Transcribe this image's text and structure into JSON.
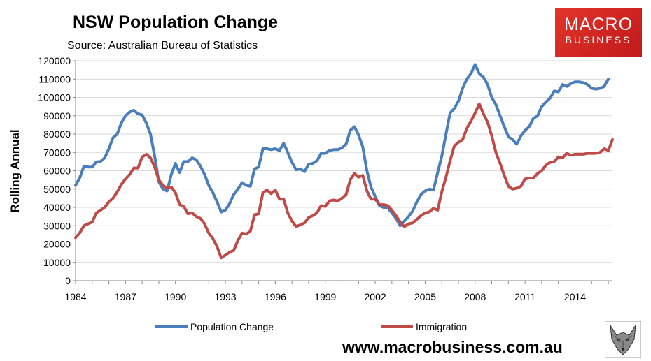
{
  "header": {
    "title": "NSW Population Change",
    "subtitle": "Source: Australian Bureau of Statistics"
  },
  "logo": {
    "line1": "MACRO",
    "line2": "BUSINESS",
    "color": "#d42a25",
    "icon": "wolf-logo-icon"
  },
  "footer": {
    "url": "www.macrobusiness.com.au"
  },
  "chart_data": {
    "type": "line",
    "ylabel": "Rolling Annual",
    "xlabel": "",
    "ylim": [
      0,
      120000
    ],
    "xlim": [
      1984,
      2016.25
    ],
    "yticks": [
      0,
      10000,
      20000,
      30000,
      40000,
      50000,
      60000,
      70000,
      80000,
      90000,
      100000,
      110000,
      120000
    ],
    "xticks": [
      "1984",
      "1987",
      "1990",
      "1993",
      "1996",
      "1999",
      "2002",
      "2005",
      "2008",
      "2011",
      "2014"
    ],
    "grid": true,
    "legend": "bottom",
    "series": [
      {
        "name": "Population Change",
        "color": "#4a7ebb",
        "points": [
          [
            1984.0,
            52000
          ],
          [
            1984.25,
            56000
          ],
          [
            1984.5,
            62500
          ],
          [
            1984.75,
            62000
          ],
          [
            1985.0,
            62000
          ],
          [
            1985.25,
            64800
          ],
          [
            1985.5,
            65000
          ],
          [
            1985.75,
            67000
          ],
          [
            1986.0,
            72000
          ],
          [
            1986.25,
            78000
          ],
          [
            1986.5,
            80000
          ],
          [
            1986.75,
            86000
          ],
          [
            1987.0,
            90000
          ],
          [
            1987.25,
            92000
          ],
          [
            1987.5,
            93000
          ],
          [
            1987.75,
            91000
          ],
          [
            1988.0,
            90500
          ],
          [
            1988.25,
            86000
          ],
          [
            1988.5,
            80000
          ],
          [
            1988.75,
            68000
          ],
          [
            1989.0,
            54000
          ],
          [
            1989.25,
            50000
          ],
          [
            1989.5,
            49000
          ],
          [
            1989.75,
            58000
          ],
          [
            1990.0,
            64000
          ],
          [
            1990.25,
            59000
          ],
          [
            1990.5,
            65000
          ],
          [
            1990.75,
            65000
          ],
          [
            1991.0,
            67000
          ],
          [
            1991.25,
            66000
          ],
          [
            1991.5,
            62500
          ],
          [
            1991.75,
            58000
          ],
          [
            1992.0,
            52000
          ],
          [
            1992.25,
            48000
          ],
          [
            1992.5,
            43000
          ],
          [
            1992.75,
            37500
          ],
          [
            1993.0,
            38500
          ],
          [
            1993.25,
            42000
          ],
          [
            1993.5,
            47000
          ],
          [
            1993.75,
            50000
          ],
          [
            1994.0,
            53500
          ],
          [
            1994.25,
            52000
          ],
          [
            1994.5,
            51500
          ],
          [
            1994.75,
            61000
          ],
          [
            1995.0,
            62000
          ],
          [
            1995.25,
            72000
          ],
          [
            1995.5,
            72000
          ],
          [
            1995.75,
            71500
          ],
          [
            1996.0,
            72000
          ],
          [
            1996.25,
            71000
          ],
          [
            1996.5,
            75000
          ],
          [
            1996.75,
            70000
          ],
          [
            1997.0,
            64500
          ],
          [
            1997.25,
            60500
          ],
          [
            1997.5,
            61000
          ],
          [
            1997.75,
            59500
          ],
          [
            1998.0,
            63500
          ],
          [
            1998.25,
            64000
          ],
          [
            1998.5,
            65500
          ],
          [
            1998.75,
            69500
          ],
          [
            1999.0,
            69500
          ],
          [
            1999.25,
            71000
          ],
          [
            1999.5,
            71500
          ],
          [
            1999.75,
            71500
          ],
          [
            2000.0,
            72500
          ],
          [
            2000.25,
            74500
          ],
          [
            2000.5,
            82000
          ],
          [
            2000.75,
            84000
          ],
          [
            2001.0,
            79500
          ],
          [
            2001.25,
            73000
          ],
          [
            2001.5,
            60000
          ],
          [
            2001.75,
            51000
          ],
          [
            2002.0,
            46000
          ],
          [
            2002.25,
            41000
          ],
          [
            2002.5,
            40000
          ],
          [
            2002.75,
            40000
          ],
          [
            2003.0,
            37000
          ],
          [
            2003.25,
            34000
          ],
          [
            2003.5,
            30000
          ],
          [
            2003.75,
            32500
          ],
          [
            2004.0,
            35000
          ],
          [
            2004.25,
            38000
          ],
          [
            2004.5,
            43000
          ],
          [
            2004.75,
            47000
          ],
          [
            2005.0,
            49000
          ],
          [
            2005.25,
            50000
          ],
          [
            2005.5,
            49500
          ],
          [
            2005.75,
            59000
          ],
          [
            2006.0,
            68000
          ],
          [
            2006.25,
            80000
          ],
          [
            2006.5,
            91500
          ],
          [
            2006.75,
            94000
          ],
          [
            2007.0,
            98000
          ],
          [
            2007.25,
            105000
          ],
          [
            2007.5,
            110000
          ],
          [
            2007.75,
            113000
          ],
          [
            2008.0,
            118000
          ],
          [
            2008.25,
            113000
          ],
          [
            2008.5,
            111000
          ],
          [
            2008.75,
            107000
          ],
          [
            2009.0,
            100000
          ],
          [
            2009.25,
            96000
          ],
          [
            2009.5,
            90000
          ],
          [
            2009.75,
            84000
          ],
          [
            2010.0,
            78500
          ],
          [
            2010.25,
            77000
          ],
          [
            2010.5,
            74500
          ],
          [
            2010.75,
            79000
          ],
          [
            2011.0,
            82000
          ],
          [
            2011.25,
            84000
          ],
          [
            2011.5,
            88500
          ],
          [
            2011.75,
            90000
          ],
          [
            2012.0,
            95000
          ],
          [
            2012.25,
            97500
          ],
          [
            2012.5,
            99500
          ],
          [
            2012.75,
            103500
          ],
          [
            2013.0,
            103000
          ],
          [
            2013.25,
            107000
          ],
          [
            2013.5,
            106000
          ],
          [
            2013.75,
            107500
          ],
          [
            2014.0,
            108500
          ],
          [
            2014.25,
            108500
          ],
          [
            2014.5,
            108000
          ],
          [
            2014.75,
            107000
          ],
          [
            2015.0,
            105000
          ],
          [
            2015.25,
            104500
          ],
          [
            2015.5,
            105000
          ],
          [
            2015.75,
            106000
          ],
          [
            2016.0,
            110000
          ]
        ]
      },
      {
        "name": "Immigration",
        "color": "#be4b48",
        "points": [
          [
            1984.0,
            23500
          ],
          [
            1984.25,
            26000
          ],
          [
            1984.5,
            30000
          ],
          [
            1984.75,
            31000
          ],
          [
            1985.0,
            32000
          ],
          [
            1985.25,
            37000
          ],
          [
            1985.5,
            38500
          ],
          [
            1985.75,
            40000
          ],
          [
            1986.0,
            43000
          ],
          [
            1986.25,
            45000
          ],
          [
            1986.5,
            48500
          ],
          [
            1986.75,
            52500
          ],
          [
            1987.0,
            55500
          ],
          [
            1987.25,
            58000
          ],
          [
            1987.5,
            61500
          ],
          [
            1987.75,
            61500
          ],
          [
            1988.0,
            67500
          ],
          [
            1988.25,
            69000
          ],
          [
            1988.5,
            67000
          ],
          [
            1988.75,
            62000
          ],
          [
            1989.0,
            55000
          ],
          [
            1989.25,
            52000
          ],
          [
            1989.5,
            50500
          ],
          [
            1989.75,
            51000
          ],
          [
            1990.0,
            48000
          ],
          [
            1990.25,
            41500
          ],
          [
            1990.5,
            40500
          ],
          [
            1990.75,
            36500
          ],
          [
            1991.0,
            37000
          ],
          [
            1991.25,
            35000
          ],
          [
            1991.5,
            34000
          ],
          [
            1991.75,
            31000
          ],
          [
            1992.0,
            26000
          ],
          [
            1992.25,
            23000
          ],
          [
            1992.5,
            18500
          ],
          [
            1992.75,
            12500
          ],
          [
            1993.0,
            14000
          ],
          [
            1993.25,
            15500
          ],
          [
            1993.5,
            16500
          ],
          [
            1993.75,
            22000
          ],
          [
            1994.0,
            26000
          ],
          [
            1994.25,
            25500
          ],
          [
            1994.5,
            27000
          ],
          [
            1994.75,
            36000
          ],
          [
            1995.0,
            36500
          ],
          [
            1995.25,
            48000
          ],
          [
            1995.5,
            49500
          ],
          [
            1995.75,
            47500
          ],
          [
            1996.0,
            49500
          ],
          [
            1996.25,
            44500
          ],
          [
            1996.5,
            44500
          ],
          [
            1996.75,
            37000
          ],
          [
            1997.0,
            32500
          ],
          [
            1997.25,
            29500
          ],
          [
            1997.5,
            30500
          ],
          [
            1997.75,
            31500
          ],
          [
            1998.0,
            34500
          ],
          [
            1998.25,
            35500
          ],
          [
            1998.5,
            37000
          ],
          [
            1998.75,
            41000
          ],
          [
            1999.0,
            40500
          ],
          [
            1999.25,
            43500
          ],
          [
            1999.5,
            44000
          ],
          [
            1999.75,
            43500
          ],
          [
            2000.0,
            45000
          ],
          [
            2000.25,
            47000
          ],
          [
            2000.5,
            55000
          ],
          [
            2000.75,
            58500
          ],
          [
            2001.0,
            56500
          ],
          [
            2001.25,
            57500
          ],
          [
            2001.5,
            49000
          ],
          [
            2001.75,
            44500
          ],
          [
            2002.0,
            44500
          ],
          [
            2002.25,
            41500
          ],
          [
            2002.5,
            41500
          ],
          [
            2002.75,
            41000
          ],
          [
            2003.0,
            38500
          ],
          [
            2003.25,
            35500
          ],
          [
            2003.5,
            32000
          ],
          [
            2003.75,
            29500
          ],
          [
            2004.0,
            31000
          ],
          [
            2004.25,
            31500
          ],
          [
            2004.5,
            33500
          ],
          [
            2004.75,
            35500
          ],
          [
            2005.0,
            37000
          ],
          [
            2005.25,
            37500
          ],
          [
            2005.5,
            39500
          ],
          [
            2005.75,
            38500
          ],
          [
            2006.0,
            48500
          ],
          [
            2006.25,
            56500
          ],
          [
            2006.5,
            65500
          ],
          [
            2006.75,
            73500
          ],
          [
            2007.0,
            75500
          ],
          [
            2007.25,
            77000
          ],
          [
            2007.5,
            83000
          ],
          [
            2007.75,
            87000
          ],
          [
            2008.0,
            91500
          ],
          [
            2008.25,
            96500
          ],
          [
            2008.5,
            91000
          ],
          [
            2008.75,
            86500
          ],
          [
            2009.0,
            79000
          ],
          [
            2009.25,
            70000
          ],
          [
            2009.5,
            64000
          ],
          [
            2009.75,
            57500
          ],
          [
            2010.0,
            51500
          ],
          [
            2010.25,
            50000
          ],
          [
            2010.5,
            50500
          ],
          [
            2010.75,
            51500
          ],
          [
            2011.0,
            55500
          ],
          [
            2011.25,
            56000
          ],
          [
            2011.5,
            56000
          ],
          [
            2011.75,
            58500
          ],
          [
            2012.0,
            60000
          ],
          [
            2012.25,
            63000
          ],
          [
            2012.5,
            64500
          ],
          [
            2012.75,
            65000
          ],
          [
            2013.0,
            67500
          ],
          [
            2013.25,
            67000
          ],
          [
            2013.5,
            69500
          ],
          [
            2013.75,
            68500
          ],
          [
            2014.0,
            69000
          ],
          [
            2014.25,
            69000
          ],
          [
            2014.5,
            69000
          ],
          [
            2014.75,
            69500
          ],
          [
            2015.0,
            69500
          ],
          [
            2015.25,
            69500
          ],
          [
            2015.5,
            70000
          ],
          [
            2015.75,
            72000
          ],
          [
            2016.0,
            71000
          ],
          [
            2016.25,
            77000
          ]
        ]
      }
    ]
  }
}
